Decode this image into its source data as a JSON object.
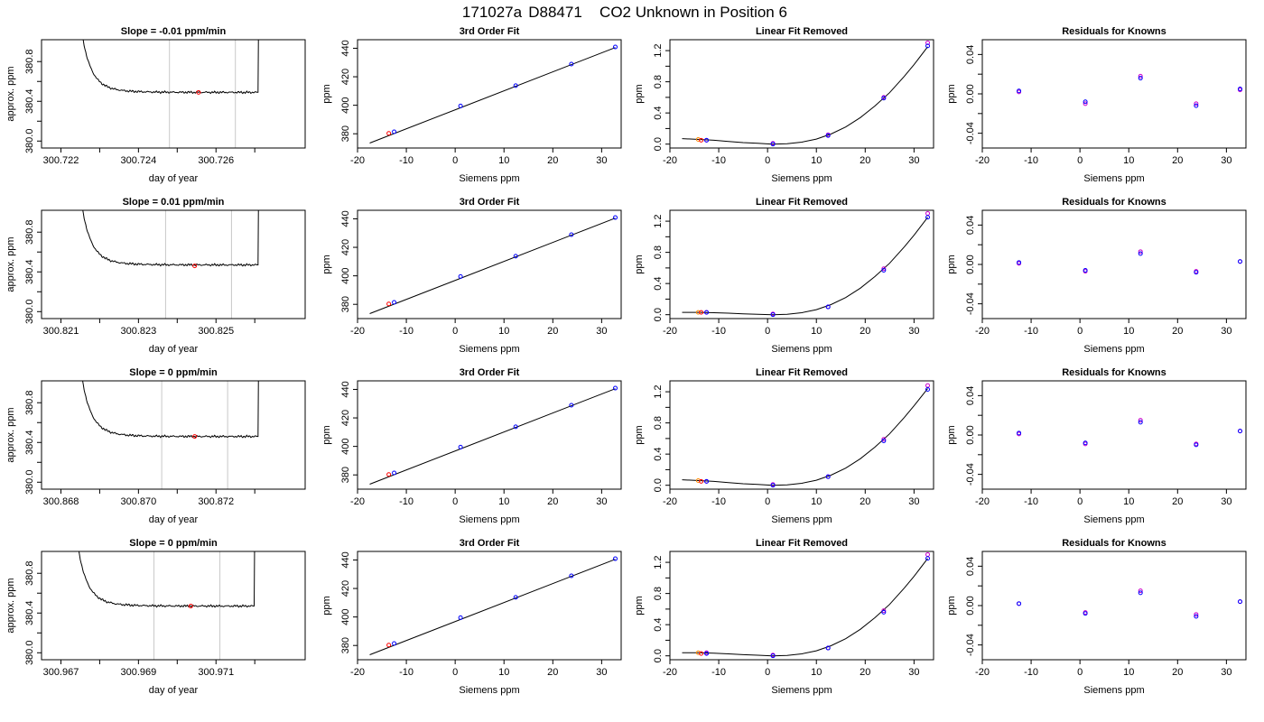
{
  "figure": {
    "title_parts": [
      "171027a",
      "D88471",
      "CO2 Unknown in Position  6"
    ]
  },
  "chart_data": [
    {
      "type": "line",
      "panel": "timeseries",
      "title": "Slope =  -0.01  ppm/min",
      "xlabel": "day of year",
      "ylabel": "approx. ppm",
      "xlim": [
        300.7215,
        300.7283
      ],
      "ylim": [
        379.93,
        381.02
      ],
      "xticks": [
        300.722,
        300.723,
        300.724,
        300.725,
        300.726,
        300.727
      ],
      "xtick_labels": [
        "300.722",
        "",
        "300.724",
        "",
        "300.726",
        ""
      ],
      "yticks": [
        380.0,
        380.2,
        380.4,
        380.6,
        380.8
      ],
      "ytick_labels": [
        "380.0",
        "",
        "380.4",
        "",
        "380.8"
      ],
      "vlines": [
        300.7248,
        300.7265
      ],
      "spike_start": 300.7225,
      "spike_end": 300.7271,
      "plateau": 380.49,
      "marker": {
        "x": 300.72555,
        "y": 380.49
      },
      "grid": false
    },
    {
      "type": "scatter",
      "panel": "fit",
      "title": "3rd Order Fit",
      "xlabel": "Siemens ppm",
      "ylabel": "ppm",
      "xlim": [
        -20,
        34
      ],
      "ylim": [
        370,
        446
      ],
      "xticks": [
        -20,
        -10,
        0,
        10,
        20,
        30
      ],
      "yticks": [
        380,
        400,
        420,
        440
      ],
      "line": {
        "x": [
          -17.5,
          32.8
        ],
        "y": [
          373.5,
          440.5
        ]
      },
      "knowns": {
        "x": [
          -12.5,
          1.1,
          12.4,
          23.8,
          32.8
        ],
        "y": [
          381.4,
          399.5,
          413.8,
          428.9,
          440.9
        ]
      },
      "unknown": {
        "x": [
          -13.6
        ],
        "y": [
          380.3
        ]
      },
      "grid": false
    },
    {
      "type": "scatter",
      "panel": "residual_curve",
      "title": "Linear Fit Removed",
      "xlabel": "Siemens ppm",
      "ylabel": "ppm",
      "xlim": [
        -20,
        34
      ],
      "ylim": [
        -0.05,
        1.34
      ],
      "xticks": [
        -20,
        -10,
        0,
        10,
        20,
        30
      ],
      "yticks": [
        0,
        0.2,
        0.4,
        0.6,
        0.8,
        1.0,
        1.2
      ],
      "ytick_labels": [
        "0.0",
        "",
        "0.4",
        "",
        "0.8",
        "",
        "1.2"
      ],
      "curve": {
        "x": [
          -17.5,
          -14,
          -11,
          -8,
          -5,
          -2,
          1,
          4,
          7,
          10,
          13,
          16,
          19,
          22,
          25,
          28,
          30,
          32.8
        ],
        "y": [
          0.07,
          0.06,
          0.05,
          0.035,
          0.02,
          0.01,
          0.0,
          0.005,
          0.025,
          0.065,
          0.13,
          0.22,
          0.34,
          0.49,
          0.66,
          0.87,
          1.02,
          1.25
        ]
      },
      "knowns": {
        "x": [
          -12.5,
          1.1,
          12.4,
          23.8,
          32.8
        ],
        "y": [
          0.05,
          0.0,
          0.11,
          0.59,
          1.26
        ]
      },
      "knowns_alt": {
        "x": [
          -12.5,
          1.1,
          12.4,
          23.8,
          32.8
        ],
        "y": [
          0.05,
          0.01,
          0.12,
          0.6,
          1.3
        ]
      },
      "unknown": {
        "x": [
          -13.6,
          -14.2
        ],
        "y": [
          0.05,
          0.06
        ]
      },
      "grid": false
    },
    {
      "type": "scatter",
      "panel": "residuals",
      "title": "Residuals for Knowns",
      "xlabel": "Siemens ppm",
      "ylabel": "ppm",
      "xlim": [
        -20,
        34
      ],
      "ylim": [
        -0.055,
        0.055
      ],
      "xticks": [
        -20,
        -10,
        0,
        10,
        20,
        30
      ],
      "yticks": [
        -0.04,
        -0.02,
        0,
        0.02,
        0.04
      ],
      "ytick_labels": [
        "-0.04",
        "",
        "0.00",
        "",
        "0.04"
      ],
      "points": {
        "x": [
          -12.5,
          1.1,
          12.4,
          23.8,
          32.8
        ],
        "y": [
          0.003,
          -0.008,
          0.016,
          -0.012,
          0.005
        ]
      },
      "points_alt": {
        "x": [
          -12.5,
          1.1,
          12.4,
          23.8,
          32.8
        ],
        "y": [
          0.002,
          -0.01,
          0.018,
          -0.01,
          0.004
        ]
      },
      "grid": false
    },
    {
      "type": "line",
      "panel": "timeseries",
      "title": "Slope =  0.01  ppm/min",
      "xlabel": "day of year",
      "ylabel": "approx. ppm",
      "xlim": [
        300.8205,
        300.8273
      ],
      "ylim": [
        379.93,
        381.02
      ],
      "xticks": [
        300.821,
        300.822,
        300.823,
        300.824,
        300.825,
        300.826
      ],
      "xtick_labels": [
        "300.821",
        "",
        "300.823",
        "",
        "300.825",
        ""
      ],
      "yticks": [
        380.0,
        380.2,
        380.4,
        380.6,
        380.8
      ],
      "ytick_labels": [
        "380.0",
        "",
        "380.4",
        "",
        "380.8"
      ],
      "vlines": [
        300.8237,
        300.8254
      ],
      "spike_start": 300.8215,
      "spike_end": 300.8261,
      "plateau": 380.47,
      "marker": {
        "x": 300.82445,
        "y": 380.46
      },
      "grid": false
    },
    {
      "type": "scatter",
      "panel": "fit",
      "title": "3rd Order Fit",
      "xlabel": "Siemens ppm",
      "ylabel": "ppm",
      "xlim": [
        -20,
        34
      ],
      "ylim": [
        370,
        446
      ],
      "xticks": [
        -20,
        -10,
        0,
        10,
        20,
        30
      ],
      "yticks": [
        380,
        400,
        420,
        440
      ],
      "line": {
        "x": [
          -17.5,
          32.8
        ],
        "y": [
          373.5,
          440.5
        ]
      },
      "knowns": {
        "x": [
          -12.5,
          1.1,
          12.4,
          23.8,
          32.8
        ],
        "y": [
          381.4,
          399.5,
          413.8,
          428.9,
          440.9
        ]
      },
      "unknown": {
        "x": [
          -13.6
        ],
        "y": [
          380.3
        ]
      },
      "grid": false
    },
    {
      "type": "scatter",
      "panel": "residual_curve",
      "title": "Linear Fit Removed",
      "xlabel": "Siemens ppm",
      "ylabel": "ppm",
      "xlim": [
        -20,
        34
      ],
      "ylim": [
        -0.05,
        1.34
      ],
      "xticks": [
        -20,
        -10,
        0,
        10,
        20,
        30
      ],
      "yticks": [
        0,
        0.2,
        0.4,
        0.6,
        0.8,
        1.0,
        1.2
      ],
      "ytick_labels": [
        "0.0",
        "",
        "0.4",
        "",
        "0.8",
        "",
        "1.2"
      ],
      "curve": {
        "x": [
          -17.5,
          -14,
          -11,
          -8,
          -5,
          -2,
          1,
          4,
          7,
          10,
          13,
          16,
          19,
          22,
          25,
          28,
          30,
          32.8
        ],
        "y": [
          0.03,
          0.03,
          0.025,
          0.02,
          0.01,
          0.005,
          0.0,
          0.005,
          0.025,
          0.065,
          0.13,
          0.22,
          0.34,
          0.49,
          0.66,
          0.87,
          1.02,
          1.25
        ]
      },
      "knowns": {
        "x": [
          -12.5,
          1.1,
          12.4,
          23.8,
          32.8
        ],
        "y": [
          0.03,
          0.0,
          0.1,
          0.57,
          1.25
        ]
      },
      "knowns_alt": {
        "x": [
          -12.5,
          1.1,
          12.4,
          23.8,
          32.8
        ],
        "y": [
          0.03,
          0.01,
          0.1,
          0.59,
          1.3
        ]
      },
      "unknown": {
        "x": [
          -13.6,
          -14.2
        ],
        "y": [
          0.03,
          0.03
        ]
      },
      "grid": false
    },
    {
      "type": "scatter",
      "panel": "residuals",
      "title": "Residuals for Knowns",
      "xlabel": "Siemens ppm",
      "ylabel": "ppm",
      "xlim": [
        -20,
        34
      ],
      "ylim": [
        -0.055,
        0.055
      ],
      "xticks": [
        -20,
        -10,
        0,
        10,
        20,
        30
      ],
      "yticks": [
        -0.04,
        -0.02,
        0,
        0.02,
        0.04
      ],
      "ytick_labels": [
        "-0.04",
        "",
        "0.00",
        "",
        "0.04"
      ],
      "points": {
        "x": [
          -12.5,
          1.1,
          12.4,
          23.8,
          32.8
        ],
        "y": [
          0.002,
          -0.006,
          0.011,
          -0.008,
          0.003
        ]
      },
      "points_alt": {
        "x": [
          -12.5,
          1.1,
          12.4,
          23.8,
          32.8
        ],
        "y": [
          0.001,
          -0.007,
          0.013,
          -0.007,
          0.003
        ]
      },
      "grid": false
    },
    {
      "type": "line",
      "panel": "timeseries",
      "title": "Slope =  0  ppm/min",
      "xlabel": "day of year",
      "ylabel": "approx. ppm",
      "xlim": [
        300.8675,
        300.8743
      ],
      "ylim": [
        379.93,
        381.02
      ],
      "xticks": [
        300.868,
        300.869,
        300.87,
        300.871,
        300.872,
        300.873
      ],
      "xtick_labels": [
        "300.868",
        "",
        "300.870",
        "",
        "300.872",
        ""
      ],
      "yticks": [
        380.0,
        380.2,
        380.4,
        380.6,
        380.8
      ],
      "ytick_labels": [
        "380.0",
        "",
        "380.4",
        "",
        "380.8"
      ],
      "vlines": [
        300.8706,
        300.8723
      ],
      "spike_start": 300.8685,
      "spike_end": 300.8731,
      "plateau": 380.46,
      "marker": {
        "x": 300.87145,
        "y": 380.46
      },
      "grid": false
    },
    {
      "type": "scatter",
      "panel": "fit",
      "title": "3rd Order Fit",
      "xlabel": "Siemens ppm",
      "ylabel": "ppm",
      "xlim": [
        -20,
        34
      ],
      "ylim": [
        370,
        446
      ],
      "xticks": [
        -20,
        -10,
        0,
        10,
        20,
        30
      ],
      "yticks": [
        380,
        400,
        420,
        440
      ],
      "line": {
        "x": [
          -17.5,
          32.8
        ],
        "y": [
          373.5,
          440.5
        ]
      },
      "knowns": {
        "x": [
          -12.5,
          1.1,
          12.4,
          23.8,
          32.8
        ],
        "y": [
          381.4,
          399.5,
          413.8,
          428.9,
          440.9
        ]
      },
      "unknown": {
        "x": [
          -13.6
        ],
        "y": [
          380.3
        ]
      },
      "grid": false
    },
    {
      "type": "scatter",
      "panel": "residual_curve",
      "title": "Linear Fit Removed",
      "xlabel": "Siemens ppm",
      "ylabel": "ppm",
      "xlim": [
        -20,
        34
      ],
      "ylim": [
        -0.05,
        1.34
      ],
      "xticks": [
        -20,
        -10,
        0,
        10,
        20,
        30
      ],
      "yticks": [
        0,
        0.2,
        0.4,
        0.6,
        0.8,
        1.0,
        1.2
      ],
      "ytick_labels": [
        "0.0",
        "",
        "0.4",
        "",
        "0.8",
        "",
        "1.2"
      ],
      "curve": {
        "x": [
          -17.5,
          -14,
          -11,
          -8,
          -5,
          -2,
          1,
          4,
          7,
          10,
          13,
          16,
          19,
          22,
          25,
          28,
          30,
          32.8
        ],
        "y": [
          0.07,
          0.06,
          0.05,
          0.035,
          0.02,
          0.01,
          0.0,
          0.005,
          0.025,
          0.065,
          0.13,
          0.22,
          0.34,
          0.49,
          0.66,
          0.87,
          1.02,
          1.24
        ]
      },
      "knowns": {
        "x": [
          -12.5,
          1.1,
          12.4,
          23.8,
          32.8
        ],
        "y": [
          0.05,
          0.0,
          0.11,
          0.57,
          1.23
        ]
      },
      "knowns_alt": {
        "x": [
          -12.5,
          1.1,
          12.4,
          23.8,
          32.8
        ],
        "y": [
          0.05,
          0.01,
          0.11,
          0.59,
          1.28
        ]
      },
      "unknown": {
        "x": [
          -13.6,
          -14.2
        ],
        "y": [
          0.05,
          0.06
        ]
      },
      "grid": false
    },
    {
      "type": "scatter",
      "panel": "residuals",
      "title": "Residuals for Knowns",
      "xlabel": "Siemens ppm",
      "ylabel": "ppm",
      "xlim": [
        -20,
        34
      ],
      "ylim": [
        -0.055,
        0.055
      ],
      "xticks": [
        -20,
        -10,
        0,
        10,
        20,
        30
      ],
      "yticks": [
        -0.04,
        -0.02,
        0,
        0.02,
        0.04
      ],
      "ytick_labels": [
        "-0.04",
        "",
        "0.00",
        "",
        "0.04"
      ],
      "points": {
        "x": [
          -12.5,
          1.1,
          12.4,
          23.8,
          32.8
        ],
        "y": [
          0.002,
          -0.008,
          0.013,
          -0.01,
          0.004
        ]
      },
      "points_alt": {
        "x": [
          -12.5,
          1.1,
          12.4,
          23.8,
          32.8
        ],
        "y": [
          0.001,
          -0.009,
          0.015,
          -0.009,
          0.004
        ]
      },
      "grid": false
    },
    {
      "type": "line",
      "panel": "timeseries",
      "title": "Slope =  0  ppm/min",
      "xlabel": "day of year",
      "ylabel": "approx. ppm",
      "xlim": [
        300.9665,
        300.9733
      ],
      "ylim": [
        379.93,
        381.02
      ],
      "xticks": [
        300.967,
        300.968,
        300.969,
        300.97,
        300.971,
        300.972
      ],
      "xtick_labels": [
        "300.967",
        "",
        "300.969",
        "",
        "300.971",
        ""
      ],
      "yticks": [
        380.0,
        380.2,
        380.4,
        380.6,
        380.8
      ],
      "ytick_labels": [
        "380.0",
        "",
        "380.4",
        "",
        "380.8"
      ],
      "vlines": [
        300.9694,
        300.9711
      ],
      "spike_start": 300.9674,
      "spike_end": 300.972,
      "plateau": 380.47,
      "marker": {
        "x": 300.97035,
        "y": 380.47
      },
      "grid": false
    },
    {
      "type": "scatter",
      "panel": "fit",
      "title": "3rd Order Fit",
      "xlabel": "Siemens ppm",
      "ylabel": "ppm",
      "xlim": [
        -20,
        34
      ],
      "ylim": [
        370,
        446
      ],
      "xticks": [
        -20,
        -10,
        0,
        10,
        20,
        30
      ],
      "yticks": [
        380,
        400,
        420,
        440
      ],
      "line": {
        "x": [
          -17.5,
          32.8
        ],
        "y": [
          373.5,
          440.5
        ]
      },
      "knowns": {
        "x": [
          -12.5,
          1.1,
          12.4,
          23.8,
          32.8
        ],
        "y": [
          381.4,
          399.5,
          413.8,
          428.9,
          440.9
        ]
      },
      "unknown": {
        "x": [
          -13.6
        ],
        "y": [
          380.3
        ]
      },
      "grid": false
    },
    {
      "type": "scatter",
      "panel": "residual_curve",
      "title": "Linear Fit Removed",
      "xlabel": "Siemens ppm",
      "ylabel": "ppm",
      "xlim": [
        -20,
        34
      ],
      "ylim": [
        -0.05,
        1.34
      ],
      "xticks": [
        -20,
        -10,
        0,
        10,
        20,
        30
      ],
      "yticks": [
        0,
        0.2,
        0.4,
        0.6,
        0.8,
        1.0,
        1.2
      ],
      "ytick_labels": [
        "0.0",
        "",
        "0.4",
        "",
        "0.8",
        "",
        "1.2"
      ],
      "curve": {
        "x": [
          -17.5,
          -14,
          -11,
          -8,
          -5,
          -2,
          1,
          4,
          7,
          10,
          13,
          16,
          19,
          22,
          25,
          28,
          30,
          32.8
        ],
        "y": [
          0.04,
          0.04,
          0.035,
          0.025,
          0.015,
          0.008,
          0.0,
          0.005,
          0.025,
          0.065,
          0.13,
          0.22,
          0.34,
          0.49,
          0.66,
          0.87,
          1.02,
          1.25
        ]
      },
      "knowns": {
        "x": [
          -12.5,
          1.1,
          12.4,
          23.8,
          32.8
        ],
        "y": [
          0.03,
          0.0,
          0.1,
          0.56,
          1.25
        ]
      },
      "knowns_alt": {
        "x": [
          -12.5,
          1.1,
          12.4,
          23.8,
          32.8
        ],
        "y": [
          0.04,
          0.01,
          0.1,
          0.58,
          1.3
        ]
      },
      "unknown": {
        "x": [
          -13.6,
          -14.2
        ],
        "y": [
          0.03,
          0.04
        ]
      },
      "grid": false
    },
    {
      "type": "scatter",
      "panel": "residuals",
      "title": "Residuals for Knowns",
      "xlabel": "Siemens ppm",
      "ylabel": "ppm",
      "xlim": [
        -20,
        34
      ],
      "ylim": [
        -0.055,
        0.055
      ],
      "xticks": [
        -20,
        -10,
        0,
        10,
        20,
        30
      ],
      "yticks": [
        -0.04,
        -0.02,
        0,
        0.02,
        0.04
      ],
      "ytick_labels": [
        "-0.04",
        "",
        "0.00",
        "",
        "0.04"
      ],
      "points": {
        "x": [
          -12.5,
          1.1,
          12.4,
          23.8,
          32.8
        ],
        "y": [
          0.002,
          -0.008,
          0.013,
          -0.011,
          0.004
        ]
      },
      "points_alt": {
        "x": [
          -12.5,
          1.1,
          12.4,
          23.8,
          32.8
        ],
        "y": [
          0.002,
          -0.007,
          0.015,
          -0.009,
          0.004
        ]
      },
      "grid": false
    }
  ],
  "colors": {
    "known": "#0000ff",
    "known_alt": "#cc00cc",
    "unknown": "#ff0000",
    "unknown_alt": "#ff8c00",
    "vline": "#c8c8c8",
    "line": "#000000"
  }
}
